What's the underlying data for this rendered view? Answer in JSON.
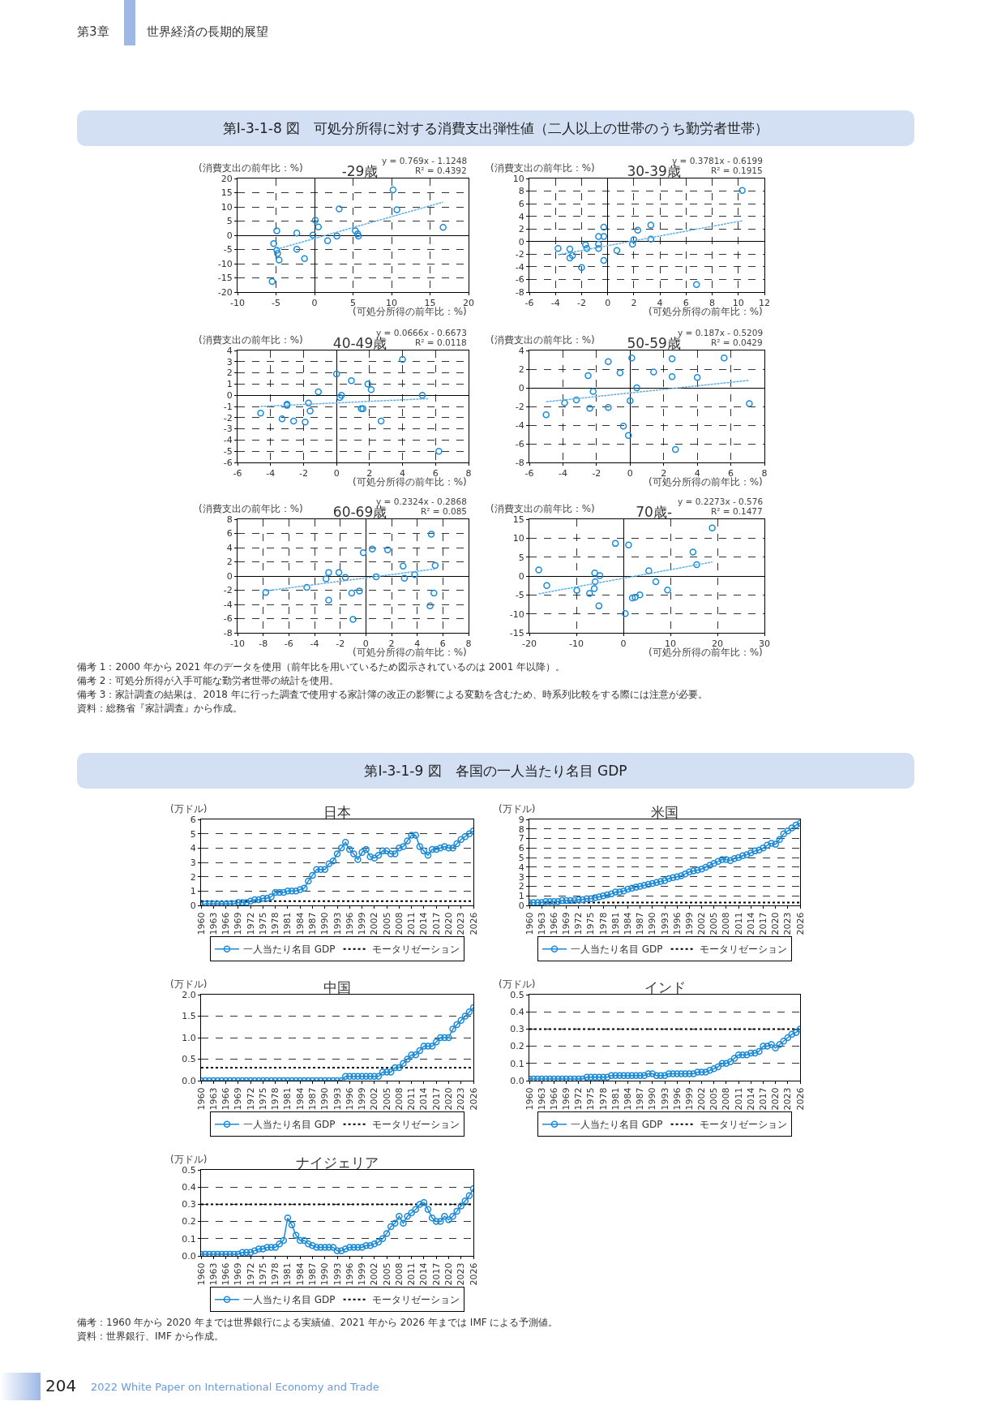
{
  "chart_data": [
    {
      "type": "scatter",
      "title": "-29歳",
      "xlabel": "(可処分所得の前年比：%)",
      "ylabel": "(消費支出の前年比：%)",
      "xlim": [
        -10,
        20
      ],
      "xticks": [
        -10,
        -5,
        0,
        5,
        10,
        15,
        20
      ],
      "ylim": [
        -20,
        20
      ],
      "yticks": [
        -20,
        -15,
        -10,
        -5,
        0,
        5,
        10,
        15,
        20
      ],
      "grid": true,
      "marker": "circle",
      "series": [
        {
          "color": "#1b8ad6",
          "x": [
            -5.5,
            -5.3,
            -4.9,
            -4.8,
            -4.9,
            -4.6,
            -2.3,
            -2.3,
            -1.3,
            -0.2,
            0.1,
            0.5,
            1.7,
            2.9,
            3.2,
            5.3,
            5.6,
            5.7,
            10.2,
            10.7,
            16.7
          ],
          "values": [
            -16.3,
            -2.9,
            -5.3,
            -6.4,
            1.6,
            -8.7,
            0.8,
            -4.9,
            -8.2,
            0.1,
            5.3,
            2.9,
            -1.9,
            -0.3,
            9.3,
            1.6,
            0.5,
            -0.3,
            16,
            9,
            2.8
          ]
        },
        {
          "type": "line",
          "color": "#5fb0e8",
          "marker": "none",
          "line_style": "dashed",
          "x": [
            -4.9,
            16.7
          ],
          "values": [
            -4.9,
            11.7
          ]
        }
      ],
      "annotations": [
        "y = 0.769x - 1.1248",
        "R² = 0.4392",
        "第3章",
        "世界経済の長期的展望",
        "第Ⅰ-3-1-8 図　可処分所得に対する消費支出弾性値（二人以上の世帯のうち勤労者世帯）"
      ]
    },
    {
      "type": "scatter",
      "title": "30-39歳",
      "xlabel": "(可処分所得の前年比：%)",
      "ylabel": "(消費支出の前年比：%)",
      "xlim": [
        -6,
        12
      ],
      "xticks": [
        -6,
        -4,
        -2,
        0,
        2,
        4,
        6,
        8,
        10,
        12
      ],
      "ylim": [
        -8,
        10
      ],
      "yticks": [
        -8,
        -6,
        -4,
        -2,
        0,
        2,
        4,
        6,
        8,
        10
      ],
      "grid": true,
      "marker": "circle",
      "series": [
        {
          "color": "#1b8ad6",
          "x": [
            -3.8,
            -2.9,
            -2.9,
            -2.7,
            -2.0,
            -1.7,
            -1.6,
            -0.7,
            -0.7,
            -0.7,
            -0.3,
            -0.3,
            -0.3,
            0.7,
            1.9,
            2.0,
            2.3,
            3.3,
            3.3,
            6.8,
            10.3
          ],
          "values": [
            -1.1,
            -1.2,
            -2.6,
            -2.2,
            -4.1,
            -0.5,
            -1.1,
            0.8,
            -0.4,
            -1.1,
            2.3,
            0.8,
            -3.0,
            -1.4,
            -0.4,
            0.3,
            1.8,
            2.6,
            0.4,
            -6.8,
            8.1
          ]
        },
        {
          "type": "line",
          "color": "#5fb0e8",
          "marker": "none",
          "line_style": "dashed",
          "x": [
            -3.8,
            10.3
          ],
          "values": [
            -2.1,
            3.3
          ]
        }
      ],
      "annotations": [
        "y = 0.3781x - 0.6199",
        "R² = 0.1915"
      ]
    },
    {
      "type": "scatter",
      "title": "40-49歳",
      "xlabel": "(可処分所得の前年比：%)",
      "ylabel": "(消費支出の前年比：%)",
      "xlim": [
        -6,
        8
      ],
      "xticks": [
        -6,
        -4,
        -2,
        0,
        2,
        4,
        6,
        8
      ],
      "ylim": [
        -6,
        4
      ],
      "yticks": [
        -6,
        -5,
        -4,
        -3,
        -2,
        -1,
        0,
        1,
        2,
        3,
        4
      ],
      "grid": true,
      "marker": "circle",
      "series": [
        {
          "color": "#1b8ad6",
          "x": [
            -4.6,
            -3.3,
            -3.0,
            -3.0,
            -2.6,
            -1.9,
            -1.7,
            -1.6,
            -1.1,
            0.0,
            0.2,
            0.3,
            0.9,
            1.5,
            1.6,
            1.9,
            2.1,
            2.7,
            4.0,
            5.2,
            6.2
          ],
          "values": [
            -1.6,
            -2.1,
            -0.8,
            -0.9,
            -2.3,
            -2.4,
            -0.7,
            -1.4,
            0.3,
            1.9,
            -0.2,
            0.0,
            1.3,
            -1.2,
            -1.2,
            1.0,
            0.5,
            -2.3,
            3.2,
            0.0,
            -5.0
          ]
        },
        {
          "type": "line",
          "color": "#5fb0e8",
          "marker": "none",
          "line_style": "dashed",
          "x": [
            -4.6,
            5.6
          ],
          "values": [
            -1.0,
            -0.3
          ]
        }
      ],
      "annotations": [
        "y = 0.0666x - 0.6673",
        "R² = 0.0118"
      ]
    },
    {
      "type": "scatter",
      "title": "50-59歳",
      "xlabel": "(可処分所得の前年比：%)",
      "ylabel": "(消費支出の前年比：%)",
      "xlim": [
        -6,
        8
      ],
      "xticks": [
        -6,
        -4,
        -2,
        0,
        2,
        4,
        6,
        8
      ],
      "ylim": [
        -8,
        4
      ],
      "yticks": [
        -8,
        -6,
        -4,
        -2,
        0,
        2,
        4
      ],
      "grid": true,
      "marker": "circle",
      "series": [
        {
          "color": "#1b8ad6",
          "x": [
            -5.0,
            -3.9,
            -3.2,
            -2.5,
            -2.4,
            -2.2,
            -1.3,
            -1.3,
            -0.6,
            -0.4,
            -0.1,
            0.0,
            0.1,
            0.4,
            1.4,
            2.5,
            2.5,
            2.7,
            4.0,
            5.6,
            7.1
          ],
          "values": [
            -2.9,
            -1.6,
            -1.3,
            1.3,
            -2.2,
            -0.4,
            2.8,
            -2.1,
            1.6,
            -4.1,
            -5.1,
            -1.4,
            3.2,
            0.0,
            1.7,
            3.1,
            1.2,
            -6.6,
            1.1,
            3.2,
            -1.7
          ]
        },
        {
          "type": "line",
          "color": "#5fb0e8",
          "marker": "none",
          "line_style": "dashed",
          "x": [
            -5.0,
            7.1
          ],
          "values": [
            -1.5,
            0.8
          ]
        }
      ],
      "annotations": [
        "y = 0.187x - 0.5209",
        "R² = 0.0429"
      ]
    },
    {
      "type": "scatter",
      "title": "60-69歳",
      "xlabel": "(可処分所得の前年比：%)",
      "ylabel": "(消費支出の前年比：%)",
      "xlim": [
        -10,
        8
      ],
      "xticks": [
        -10,
        -8,
        -6,
        -4,
        -2,
        0,
        2,
        4,
        6,
        8
      ],
      "ylim": [
        -8,
        8
      ],
      "yticks": [
        -8,
        -6,
        -4,
        -2,
        0,
        2,
        4,
        6,
        8
      ],
      "grid": true,
      "marker": "circle",
      "series": [
        {
          "color": "#1b8ad6",
          "x": [
            -7.8,
            -4.6,
            -3.1,
            -2.9,
            -2.9,
            -2.1,
            -1.6,
            -1.1,
            -1.0,
            -0.5,
            -0.2,
            0.5,
            0.8,
            1.7,
            2.9,
            3.0,
            3.8,
            5.0,
            5.1,
            5.3,
            5.4
          ],
          "values": [
            -2.3,
            -1.6,
            -0.4,
            0.5,
            -3.4,
            0.5,
            -0.2,
            -2.4,
            -6.1,
            -2.1,
            3.3,
            3.8,
            -0.1,
            3.7,
            1.4,
            -0.3,
            0.2,
            -4.2,
            5.9,
            -2.4,
            1.5
          ]
        },
        {
          "type": "line",
          "color": "#5fb0e8",
          "marker": "none",
          "line_style": "dashed",
          "x": [
            -7.8,
            5.4
          ],
          "values": [
            -2.1,
            1.0
          ]
        }
      ],
      "annotations": [
        "y = 0.2324x - 0.2868",
        "R² = 0.085"
      ]
    },
    {
      "type": "scatter",
      "title": "70歳-",
      "xlabel": "(可処分所得の前年比：%)",
      "ylabel": "(消費支出の前年比：%)",
      "xlim": [
        -20,
        30
      ],
      "xticks": [
        -20,
        -10,
        0,
        10,
        20,
        30
      ],
      "ylim": [
        -15,
        15
      ],
      "yticks": [
        -15,
        -10,
        -5,
        0,
        5,
        10,
        15
      ],
      "grid": true,
      "marker": "circle",
      "series": [
        {
          "color": "#1b8ad6",
          "x": [
            -18.0,
            -16.3,
            -9.9,
            -7.2,
            -6.1,
            -6.0,
            -6.2,
            -5.2,
            -5.0,
            -1.7,
            0.4,
            1.1,
            1.9,
            2.5,
            3.5,
            5.4,
            6.9,
            9.4,
            14.8,
            15.6,
            18.9
          ],
          "values": [
            1.6,
            -2.5,
            -3.8,
            -4.6,
            0.8,
            -1.5,
            -3.3,
            -7.9,
            0.1,
            8.6,
            -9.9,
            8.2,
            -5.8,
            -5.6,
            -5.0,
            1.4,
            -1.5,
            -3.7,
            6.3,
            3.0,
            12.7
          ]
        },
        {
          "type": "line",
          "color": "#5fb0e8",
          "marker": "none",
          "line_style": "dashed",
          "x": [
            -18.0,
            18.9
          ],
          "values": [
            -4.7,
            3.7
          ]
        }
      ],
      "annotations": [
        "y = 0.2273x - 0.576",
        "R² = 0.1477",
        "備考 1：2000 年から 2021 年のデータを使用（前年比を用いているため図示されているのは 2001 年以降）。",
        "備考 2：可処分所得が入手可能な勤労者世帯の統計を使用。",
        "備考 3：家計調査の結果は、2018 年に行った調査で使用する家計簿の改正の影響による変動を含むため、時系列比較をする際には注意が必要。",
        "資料：総務省『家計調査』から作成。"
      ]
    },
    {
      "type": "line",
      "title": "日本",
      "ylabel": "(万ドル)",
      "legend": "bottom",
      "grid": "y",
      "marker": "circle",
      "line_style": "solid",
      "x": [
        1960,
        1961,
        1962,
        1963,
        1964,
        1965,
        1966,
        1967,
        1968,
        1969,
        1970,
        1971,
        1972,
        1973,
        1974,
        1975,
        1976,
        1977,
        1978,
        1979,
        1980,
        1981,
        1982,
        1983,
        1984,
        1985,
        1986,
        1987,
        1988,
        1989,
        1990,
        1991,
        1992,
        1993,
        1994,
        1995,
        1996,
        1997,
        1998,
        1999,
        2000,
        2001,
        2002,
        2003,
        2004,
        2005,
        2006,
        2007,
        2008,
        2009,
        2010,
        2011,
        2012,
        2013,
        2014,
        2015,
        2016,
        2017,
        2018,
        2019,
        2020,
        2021,
        2022,
        2023,
        2024,
        2025,
        2026
      ],
      "xlim": [
        1960,
        2026
      ],
      "xticks": [
        1960,
        1963,
        1966,
        1969,
        1972,
        1975,
        1978,
        1981,
        1984,
        1987,
        1990,
        1993,
        1996,
        1999,
        2002,
        2005,
        2008,
        2011,
        2014,
        2017,
        2020,
        2023,
        2026
      ],
      "ylim": [
        0,
        6
      ],
      "yticks": [
        0,
        1,
        2,
        3,
        4,
        5,
        6
      ],
      "series": [
        {
          "name": "一人当たり名目 GDP",
          "color": "#1b8ad6",
          "values": [
            0.0,
            0.1,
            0.1,
            0.1,
            0.1,
            0.1,
            0.1,
            0.1,
            0.1,
            0.2,
            0.2,
            0.2,
            0.3,
            0.4,
            0.4,
            0.5,
            0.5,
            0.6,
            0.9,
            0.9,
            0.9,
            1.0,
            1.0,
            1.0,
            1.1,
            1.2,
            1.7,
            2.1,
            2.5,
            2.5,
            2.5,
            2.9,
            3.1,
            3.6,
            4.0,
            4.4,
            3.9,
            3.6,
            3.2,
            3.7,
            3.9,
            3.4,
            3.3,
            3.5,
            3.8,
            3.8,
            3.6,
            3.6,
            4.0,
            4.1,
            4.5,
            4.9,
            4.9,
            4.1,
            3.8,
            3.5,
            3.9,
            3.9,
            4.0,
            4.1,
            4.0,
            4.0,
            4.3,
            4.6,
            4.8,
            5.0,
            5.2
          ]
        }
      ],
      "ref_lines": [
        {
          "axis": "y",
          "value": 0.3,
          "label": "モータリゼーション",
          "line_style": "dotted",
          "color": "#000000"
        }
      ],
      "annotations": [
        "第Ⅰ-3-1-9 図　各国の一人当たり名目 GDP"
      ]
    },
    {
      "type": "line",
      "title": "米国",
      "ylabel": "(万ドル)",
      "legend": "bottom",
      "grid": "y",
      "marker": "circle",
      "line_style": "solid",
      "x": [
        1960,
        1961,
        1962,
        1963,
        1964,
        1965,
        1966,
        1967,
        1968,
        1969,
        1970,
        1971,
        1972,
        1973,
        1974,
        1975,
        1976,
        1977,
        1978,
        1979,
        1980,
        1981,
        1982,
        1983,
        1984,
        1985,
        1986,
        1987,
        1988,
        1989,
        1990,
        1991,
        1992,
        1993,
        1994,
        1995,
        1996,
        1997,
        1998,
        1999,
        2000,
        2001,
        2002,
        2003,
        2004,
        2005,
        2006,
        2007,
        2008,
        2009,
        2010,
        2011,
        2012,
        2013,
        2014,
        2015,
        2016,
        2017,
        2018,
        2019,
        2020,
        2021,
        2022,
        2023,
        2024,
        2025,
        2026
      ],
      "xlim": [
        1960,
        2026
      ],
      "xticks": [
        1960,
        1963,
        1966,
        1969,
        1972,
        1975,
        1978,
        1981,
        1984,
        1987,
        1990,
        1993,
        1996,
        1999,
        2002,
        2005,
        2008,
        2011,
        2014,
        2017,
        2020,
        2023,
        2026
      ],
      "ylim": [
        0,
        9
      ],
      "yticks": [
        0,
        1,
        2,
        3,
        4,
        5,
        6,
        7,
        8,
        9
      ],
      "series": [
        {
          "name": "一人当たり名目 GDP",
          "color": "#1b8ad6",
          "values": [
            0.3,
            0.3,
            0.3,
            0.3,
            0.4,
            0.4,
            0.4,
            0.4,
            0.5,
            0.5,
            0.5,
            0.5,
            0.6,
            0.6,
            0.7,
            0.7,
            0.8,
            0.9,
            1.0,
            1.1,
            1.2,
            1.4,
            1.4,
            1.5,
            1.7,
            1.8,
            1.9,
            2.0,
            2.1,
            2.2,
            2.3,
            2.4,
            2.5,
            2.6,
            2.8,
            2.9,
            3.0,
            3.1,
            3.3,
            3.5,
            3.6,
            3.7,
            3.8,
            4.0,
            4.2,
            4.4,
            4.6,
            4.8,
            4.8,
            4.7,
            4.9,
            5.0,
            5.2,
            5.3,
            5.5,
            5.7,
            5.8,
            6.0,
            6.3,
            6.5,
            6.4,
            6.9,
            7.5,
            7.8,
            8.1,
            8.4,
            8.6
          ]
        }
      ],
      "ref_lines": [
        {
          "axis": "y",
          "value": 0.3,
          "label": "モータリゼーション",
          "line_style": "dotted",
          "color": "#000000"
        }
      ]
    },
    {
      "type": "line",
      "title": "中国",
      "ylabel": "(万ドル)",
      "legend": "bottom",
      "grid": "y",
      "marker": "circle",
      "line_style": "solid",
      "x": [
        1960,
        1961,
        1962,
        1963,
        1964,
        1965,
        1966,
        1967,
        1968,
        1969,
        1970,
        1971,
        1972,
        1973,
        1974,
        1975,
        1976,
        1977,
        1978,
        1979,
        1980,
        1981,
        1982,
        1983,
        1984,
        1985,
        1986,
        1987,
        1988,
        1989,
        1990,
        1991,
        1992,
        1993,
        1994,
        1995,
        1996,
        1997,
        1998,
        1999,
        2000,
        2001,
        2002,
        2003,
        2004,
        2005,
        2006,
        2007,
        2008,
        2009,
        2010,
        2011,
        2012,
        2013,
        2014,
        2015,
        2016,
        2017,
        2018,
        2019,
        2020,
        2021,
        2022,
        2023,
        2024,
        2025,
        2026
      ],
      "xlim": [
        1960,
        2026
      ],
      "xticks": [
        1960,
        1963,
        1966,
        1969,
        1972,
        1975,
        1978,
        1981,
        1984,
        1987,
        1990,
        1993,
        1996,
        1999,
        2002,
        2005,
        2008,
        2011,
        2014,
        2017,
        2020,
        2023,
        2026
      ],
      "ylim": [
        0,
        2
      ],
      "yticks": [
        {
          "value": 0,
          "label": "0.0"
        },
        0.5,
        {
          "value": 1,
          "label": "1.0"
        },
        1.5,
        {
          "value": 2,
          "label": "2.0"
        }
      ],
      "series": [
        {
          "name": "一人当たり名目 GDP",
          "color": "#1b8ad6",
          "values": [
            0.0,
            0.0,
            0.0,
            0.0,
            0.0,
            0.0,
            0.0,
            0.0,
            0.0,
            0.0,
            0.0,
            0.0,
            0.0,
            0.0,
            0.0,
            0.0,
            0.0,
            0.0,
            0.0,
            0.0,
            0.0,
            0.0,
            0.0,
            0.0,
            0.0,
            0.0,
            0.0,
            0.0,
            0.0,
            0.0,
            0.0,
            0.0,
            0.0,
            0.0,
            0.0,
            0.1,
            0.1,
            0.1,
            0.1,
            0.1,
            0.1,
            0.1,
            0.1,
            0.1,
            0.2,
            0.2,
            0.2,
            0.3,
            0.3,
            0.4,
            0.5,
            0.6,
            0.6,
            0.7,
            0.8,
            0.8,
            0.8,
            0.9,
            1.0,
            1.0,
            1.0,
            1.2,
            1.3,
            1.4,
            1.5,
            1.6,
            1.7
          ]
        }
      ],
      "ref_lines": [
        {
          "axis": "y",
          "value": 0.3,
          "label": "モータリゼーション",
          "line_style": "dotted",
          "color": "#000000"
        }
      ]
    },
    {
      "type": "line",
      "title": "インド",
      "ylabel": "(万ドル)",
      "legend": "bottom",
      "grid": "y",
      "marker": "circle",
      "line_style": "solid",
      "x": [
        1960,
        1961,
        1962,
        1963,
        1964,
        1965,
        1966,
        1967,
        1968,
        1969,
        1970,
        1971,
        1972,
        1973,
        1974,
        1975,
        1976,
        1977,
        1978,
        1979,
        1980,
        1981,
        1982,
        1983,
        1984,
        1985,
        1986,
        1987,
        1988,
        1989,
        1990,
        1991,
        1992,
        1993,
        1994,
        1995,
        1996,
        1997,
        1998,
        1999,
        2000,
        2001,
        2002,
        2003,
        2004,
        2005,
        2006,
        2007,
        2008,
        2009,
        2010,
        2011,
        2012,
        2013,
        2014,
        2015,
        2016,
        2017,
        2018,
        2019,
        2020,
        2021,
        2022,
        2023,
        2024,
        2025,
        2026
      ],
      "xlim": [
        1960,
        2026
      ],
      "xticks": [
        1960,
        1963,
        1966,
        1969,
        1972,
        1975,
        1978,
        1981,
        1984,
        1987,
        1990,
        1993,
        1996,
        1999,
        2002,
        2005,
        2008,
        2011,
        2014,
        2017,
        2020,
        2023,
        2026
      ],
      "ylim": [
        0,
        0.5
      ],
      "yticks": [
        {
          "value": 0,
          "label": "0.0"
        },
        0.1,
        0.2,
        0.3,
        0.4,
        0.5
      ],
      "series": [
        {
          "name": "一人当たり名目 GDP",
          "color": "#1b8ad6",
          "values": [
            0.01,
            0.01,
            0.01,
            0.01,
            0.01,
            0.01,
            0.01,
            0.01,
            0.01,
            0.01,
            0.01,
            0.01,
            0.01,
            0.01,
            0.02,
            0.02,
            0.02,
            0.02,
            0.02,
            0.02,
            0.03,
            0.03,
            0.03,
            0.03,
            0.03,
            0.03,
            0.03,
            0.03,
            0.03,
            0.04,
            0.04,
            0.03,
            0.03,
            0.03,
            0.04,
            0.04,
            0.04,
            0.04,
            0.04,
            0.04,
            0.04,
            0.05,
            0.05,
            0.05,
            0.06,
            0.07,
            0.08,
            0.1,
            0.1,
            0.11,
            0.13,
            0.15,
            0.15,
            0.15,
            0.16,
            0.16,
            0.17,
            0.2,
            0.2,
            0.21,
            0.19,
            0.21,
            0.23,
            0.25,
            0.27,
            0.28,
            0.3
          ]
        }
      ],
      "ref_lines": [
        {
          "axis": "y",
          "value": 0.3,
          "label": "モータリゼーション",
          "line_style": "dotted",
          "color": "#000000"
        }
      ]
    },
    {
      "type": "line",
      "title": "ナイジェリア",
      "ylabel": "(万ドル)",
      "legend": "bottom",
      "grid": "y",
      "marker": "circle",
      "line_style": "solid",
      "x": [
        1960,
        1961,
        1962,
        1963,
        1964,
        1965,
        1966,
        1967,
        1968,
        1969,
        1970,
        1971,
        1972,
        1973,
        1974,
        1975,
        1976,
        1977,
        1978,
        1979,
        1980,
        1981,
        1982,
        1983,
        1984,
        1985,
        1986,
        1987,
        1988,
        1989,
        1990,
        1991,
        1992,
        1993,
        1994,
        1995,
        1996,
        1997,
        1998,
        1999,
        2000,
        2001,
        2002,
        2003,
        2004,
        2005,
        2006,
        2007,
        2008,
        2009,
        2010,
        2011,
        2012,
        2013,
        2014,
        2015,
        2016,
        2017,
        2018,
        2019,
        2020,
        2021,
        2022,
        2023,
        2024,
        2025,
        2026
      ],
      "xlim": [
        1960,
        2026
      ],
      "xticks": [
        1960,
        1963,
        1966,
        1969,
        1972,
        1975,
        1978,
        1981,
        1984,
        1987,
        1990,
        1993,
        1996,
        1999,
        2002,
        2005,
        2008,
        2011,
        2014,
        2017,
        2020,
        2023,
        2026
      ],
      "ylim": [
        0,
        0.5
      ],
      "yticks": [
        {
          "value": 0,
          "label": "0.0"
        },
        0.1,
        0.2,
        0.3,
        0.4,
        0.5
      ],
      "series": [
        {
          "name": "一人当たり名目 GDP",
          "color": "#1b8ad6",
          "values": [
            0.01,
            0.01,
            0.01,
            0.01,
            0.01,
            0.01,
            0.01,
            0.01,
            0.01,
            0.01,
            0.02,
            0.02,
            0.02,
            0.03,
            0.04,
            0.04,
            0.05,
            0.05,
            0.05,
            0.07,
            0.09,
            0.22,
            0.18,
            0.12,
            0.09,
            0.09,
            0.07,
            0.06,
            0.05,
            0.05,
            0.05,
            0.05,
            0.05,
            0.03,
            0.03,
            0.04,
            0.05,
            0.05,
            0.05,
            0.05,
            0.06,
            0.06,
            0.07,
            0.08,
            0.1,
            0.13,
            0.17,
            0.19,
            0.23,
            0.19,
            0.23,
            0.25,
            0.27,
            0.3,
            0.31,
            0.27,
            0.22,
            0.2,
            0.2,
            0.23,
            0.21,
            0.23,
            0.26,
            0.29,
            0.32,
            0.35,
            0.39
          ]
        }
      ],
      "ref_lines": [
        {
          "axis": "y",
          "value": 0.3,
          "label": "モータリゼーション",
          "line_style": "dotted",
          "color": "#000000"
        }
      ],
      "annotations": [
        "備考：1960 年から 2020 年までは世界銀行による実績値、2021 年から 2026 年までは IMF による予測値。",
        "資料：世界銀行、IMF から作成。",
        "204",
        "2022 White Paper on International Economy and Trade"
      ]
    }
  ]
}
